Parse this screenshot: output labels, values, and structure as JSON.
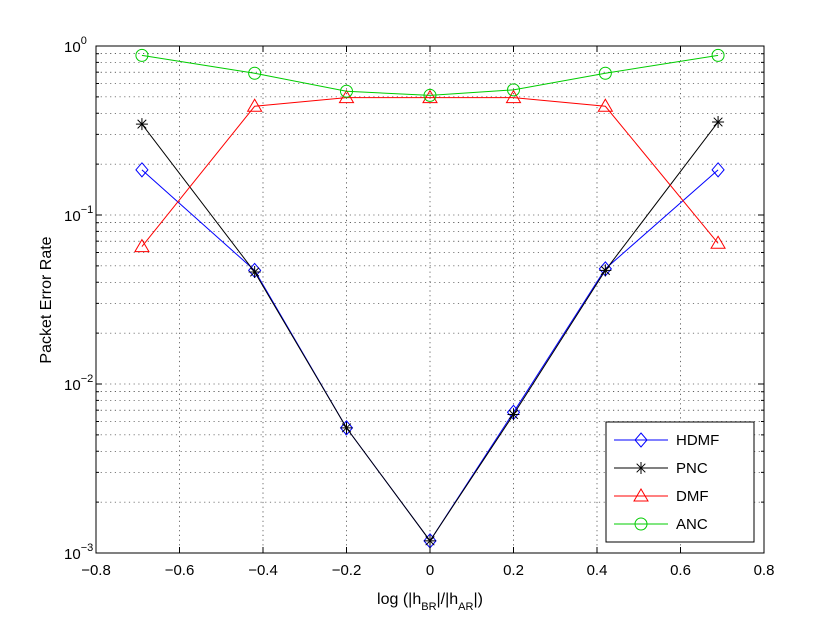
{
  "chart_data": {
    "type": "line",
    "title": "",
    "xlabel": {
      "prefix": "log (|h",
      "sub1": "BR",
      "middle": "|/|h",
      "sub2": "AR",
      "suffix": "|)"
    },
    "ylabel": "Packet Error Rate",
    "xlim": [
      -0.8,
      0.8
    ],
    "ylim": [
      0.001,
      1
    ],
    "yscale": "log",
    "grid": true,
    "legend_position": "bottom-right",
    "x_ticks": [
      "−0.8",
      "−0.6",
      "−0.4",
      "−0.2",
      "0",
      "0.2",
      "0.4",
      "0.6",
      "0.8"
    ],
    "y_ticks": [
      {
        "base": "10",
        "exp": "0"
      },
      {
        "base": "10",
        "exp": "−1"
      },
      {
        "base": "10",
        "exp": "−2"
      },
      {
        "base": "10",
        "exp": "−3"
      }
    ],
    "x": [
      -0.69,
      -0.42,
      -0.2,
      0,
      0.2,
      0.42,
      0.69
    ],
    "series": [
      {
        "name": "HDMF",
        "color": "#0000ff",
        "marker": "diamond",
        "values": [
          0.185,
          0.047,
          0.0055,
          0.00118,
          0.0068,
          0.048,
          0.185
        ]
      },
      {
        "name": "PNC",
        "color": "#000000",
        "marker": "asterisk",
        "values": [
          0.345,
          0.046,
          0.0055,
          0.00118,
          0.0066,
          0.047,
          0.355
        ]
      },
      {
        "name": "DMF",
        "color": "#ff0000",
        "marker": "triangle",
        "values": [
          0.065,
          0.44,
          0.495,
          0.495,
          0.495,
          0.44,
          0.068
        ]
      },
      {
        "name": "ANC",
        "color": "#00cc00",
        "marker": "circle",
        "values": [
          0.88,
          0.69,
          0.54,
          0.51,
          0.55,
          0.69,
          0.88
        ]
      }
    ]
  }
}
